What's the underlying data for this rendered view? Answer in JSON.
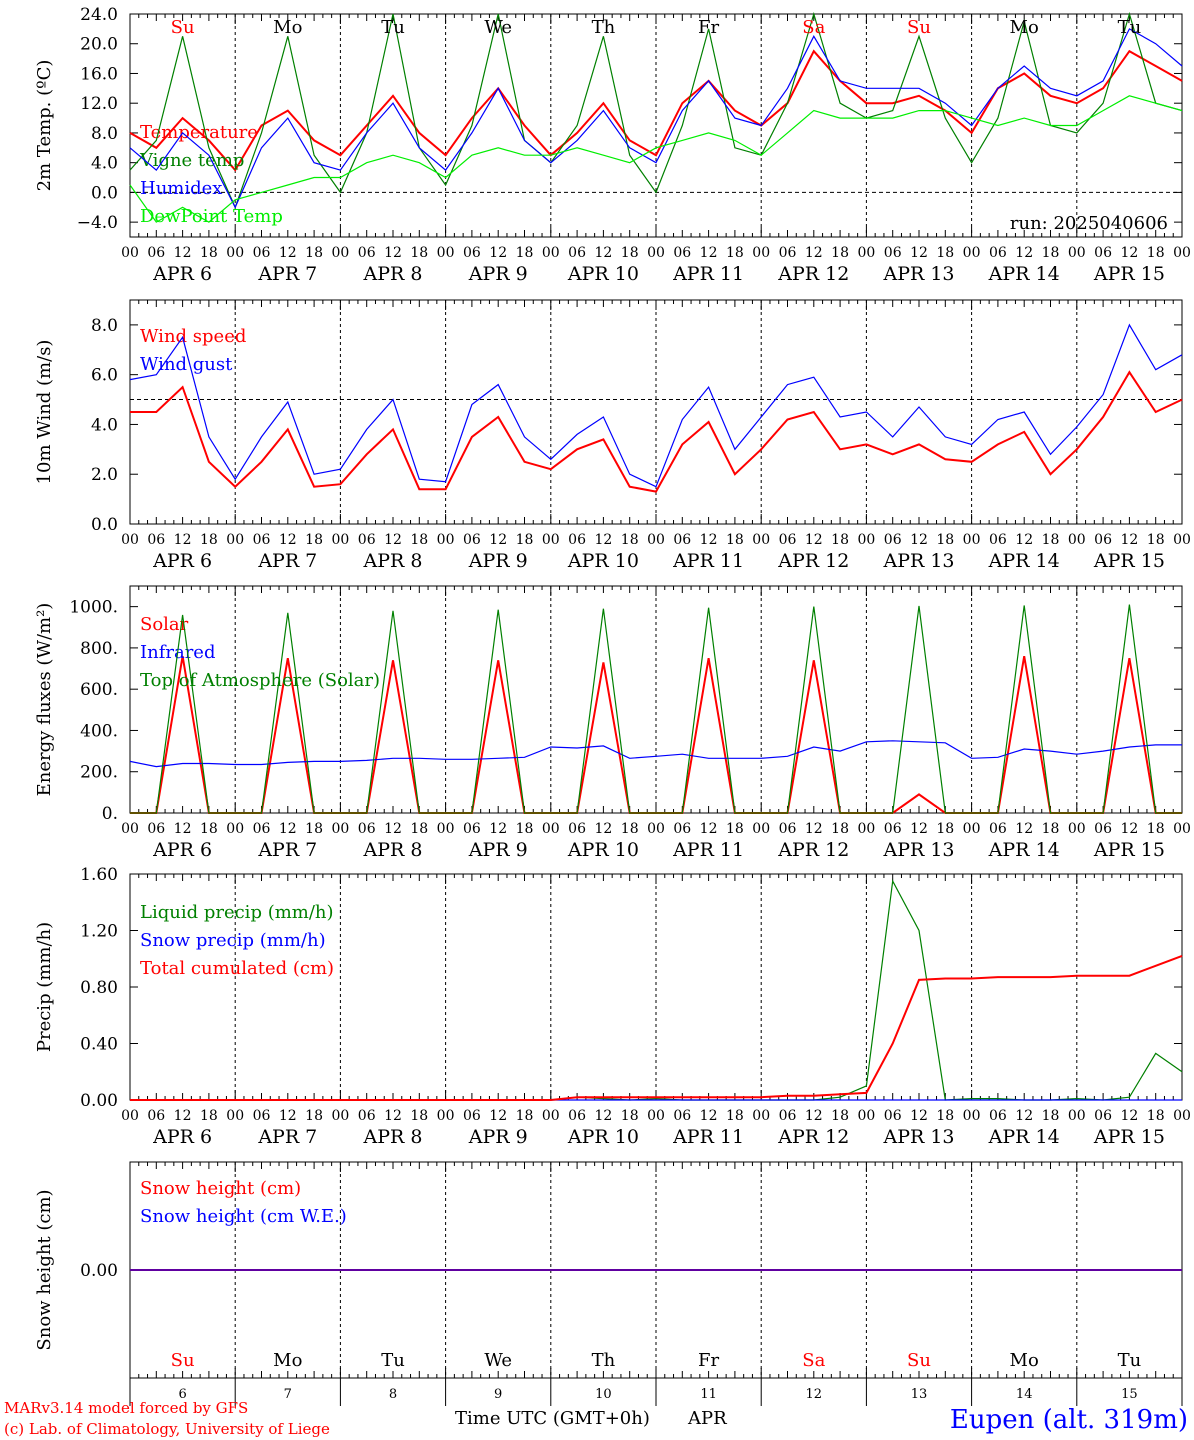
{
  "days": [
    {
      "dow": "Su",
      "date": "APR 6",
      "num": "6",
      "weekend": true
    },
    {
      "dow": "Mo",
      "date": "APR 7",
      "num": "7",
      "weekend": false
    },
    {
      "dow": "Tu",
      "date": "APR 8",
      "num": "8",
      "weekend": false
    },
    {
      "dow": "We",
      "date": "APR 9",
      "num": "9",
      "weekend": false
    },
    {
      "dow": "Th",
      "date": "APR 10",
      "num": "10",
      "weekend": false
    },
    {
      "dow": "Fr",
      "date": "APR 11",
      "num": "11",
      "weekend": false
    },
    {
      "dow": "Sa",
      "date": "APR 12",
      "num": "12",
      "weekend": true
    },
    {
      "dow": "Su",
      "date": "APR 13",
      "num": "13",
      "weekend": true
    },
    {
      "dow": "Mo",
      "date": "APR 14",
      "num": "14",
      "weekend": false
    },
    {
      "dow": "Tu",
      "date": "APR 15",
      "num": "15",
      "weekend": false
    }
  ],
  "hour_labels": [
    "00",
    "06",
    "12",
    "18"
  ],
  "last_hour_label": "00",
  "colors": {
    "red": "#ff0000",
    "darkgreen": "#008000",
    "blue": "#0000ff",
    "lightgreen": "#00ee00",
    "weekend": "#ff0000",
    "text": "#000000"
  },
  "run_label": "run: 2025040606",
  "footer": {
    "credit1": "MARv3.14 model forced by GFS",
    "credit2": "(c) Lab. of Climatology, University of Liege",
    "axis_title": "Time UTC (GMT+0h)",
    "month": "APR",
    "station": "Eupen (alt. 319m)"
  },
  "chart_data": [
    {
      "type": "line",
      "ylabel": "2m Temp. (ºC)",
      "ylim": [
        -6,
        24
      ],
      "yticks": [
        "24.0",
        "20.0",
        "16.0",
        "12.0",
        "8.0",
        "4.0",
        "0.0",
        "−4.0"
      ],
      "ytick_values": [
        24,
        20,
        16,
        12,
        8,
        4,
        0,
        -4
      ],
      "ref_line": 0,
      "x_hours": [
        0,
        6,
        12,
        18,
        24,
        30,
        36,
        42,
        48,
        54,
        60,
        66,
        72,
        78,
        84,
        90,
        96,
        102,
        108,
        114,
        120,
        126,
        132,
        138,
        144,
        150,
        156,
        162,
        168,
        174,
        180,
        186,
        192,
        198,
        204,
        210,
        216,
        222,
        228,
        234,
        240
      ],
      "series": [
        {
          "name": "Temperature",
          "color": "red",
          "values": [
            8,
            6,
            10,
            7,
            3,
            9,
            11,
            7,
            5,
            9,
            13,
            8,
            5,
            10,
            14,
            9,
            5,
            8,
            12,
            7,
            5,
            12,
            15,
            11,
            9,
            12,
            19,
            15,
            12,
            12,
            13,
            11,
            8,
            14,
            16,
            13,
            12,
            14,
            19,
            17,
            15
          ]
        },
        {
          "name": "Vigne temp",
          "color": "darkgreen",
          "values": [
            3,
            7,
            21,
            6,
            -2,
            8,
            21,
            5,
            0,
            8,
            24,
            6,
            1,
            9,
            24,
            7,
            4,
            9,
            21,
            5,
            0,
            9,
            22,
            6,
            5,
            12,
            27,
            12,
            10,
            11,
            21,
            10,
            4,
            10,
            23,
            9,
            8,
            12,
            26,
            12,
            11
          ]
        },
        {
          "name": "Humidex",
          "color": "blue",
          "values": [
            6,
            3,
            8,
            5,
            -2,
            6,
            10,
            4,
            3,
            8,
            12,
            6,
            3,
            8,
            14,
            7,
            4,
            7,
            11,
            6,
            4,
            11,
            15,
            10,
            9,
            14,
            21,
            15,
            14,
            14,
            14,
            12,
            9,
            14,
            17,
            14,
            13,
            15,
            22,
            20,
            17
          ]
        },
        {
          "name": "DewPoint Temp",
          "color": "lightgreen",
          "values": [
            1,
            -4,
            -2,
            -4,
            -1,
            0,
            1,
            2,
            2,
            4,
            5,
            4,
            2,
            5,
            6,
            5,
            5,
            6,
            5,
            4,
            6,
            7,
            8,
            7,
            5,
            8,
            11,
            10,
            10,
            10,
            11,
            11,
            10,
            9,
            10,
            9,
            9,
            11,
            13,
            12,
            11
          ]
        }
      ],
      "annotation": "run: 2025040606"
    },
    {
      "type": "line",
      "ylabel": "10m Wind (m/s)",
      "ylim": [
        0,
        9
      ],
      "yticks": [
        "8.0",
        "6.0",
        "4.0",
        "2.0",
        "0.0"
      ],
      "ytick_values": [
        8,
        6,
        4,
        2,
        0
      ],
      "ref_line": 5,
      "x_hours": [
        0,
        6,
        12,
        18,
        24,
        30,
        36,
        42,
        48,
        54,
        60,
        66,
        72,
        78,
        84,
        90,
        96,
        102,
        108,
        114,
        120,
        126,
        132,
        138,
        144,
        150,
        156,
        162,
        168,
        174,
        180,
        186,
        192,
        198,
        204,
        210,
        216,
        222,
        228,
        234,
        240
      ],
      "series": [
        {
          "name": "Wind speed",
          "color": "red",
          "values": [
            4.5,
            4.5,
            5.5,
            2.5,
            1.5,
            2.5,
            3.8,
            1.5,
            1.6,
            2.8,
            3.8,
            1.4,
            1.4,
            3.5,
            4.3,
            2.5,
            2.2,
            3.0,
            3.4,
            1.5,
            1.3,
            3.2,
            4.1,
            2.0,
            3.0,
            4.2,
            4.5,
            3.0,
            3.2,
            2.8,
            3.2,
            2.6,
            2.5,
            3.2,
            3.7,
            2.0,
            3.0,
            4.3,
            6.1,
            4.5,
            5.0
          ]
        },
        {
          "name": "Wind gust",
          "color": "blue",
          "values": [
            5.8,
            6.0,
            7.5,
            3.5,
            1.8,
            3.5,
            4.9,
            2.0,
            2.2,
            3.8,
            5.0,
            1.8,
            1.7,
            4.8,
            5.6,
            3.5,
            2.6,
            3.6,
            4.3,
            2.0,
            1.5,
            4.2,
            5.5,
            3.0,
            4.3,
            5.6,
            5.9,
            4.3,
            4.5,
            3.5,
            4.7,
            3.5,
            3.2,
            4.2,
            4.5,
            2.8,
            3.9,
            5.2,
            8.0,
            6.2,
            6.8
          ]
        }
      ]
    },
    {
      "type": "line",
      "ylabel": "Energy fluxes (W/m²)",
      "ylim": [
        0,
        1100
      ],
      "yticks": [
        "1000.",
        "800.",
        "600.",
        "400.",
        "200.",
        "0."
      ],
      "ytick_values": [
        1000,
        800,
        600,
        400,
        200,
        0
      ],
      "x_hours": [
        0,
        6,
        12,
        18,
        24,
        30,
        36,
        42,
        48,
        54,
        60,
        66,
        72,
        78,
        84,
        90,
        96,
        102,
        108,
        114,
        120,
        126,
        132,
        138,
        144,
        150,
        156,
        162,
        168,
        174,
        180,
        186,
        192,
        198,
        204,
        210,
        216,
        222,
        228,
        234,
        240
      ],
      "series": [
        {
          "name": "Solar",
          "color": "red",
          "values": [
            0,
            0,
            760,
            0,
            0,
            0,
            750,
            0,
            0,
            0,
            740,
            0,
            0,
            0,
            740,
            0,
            0,
            0,
            730,
            0,
            0,
            0,
            750,
            0,
            0,
            0,
            740,
            0,
            0,
            0,
            90,
            0,
            0,
            0,
            760,
            0,
            0,
            0,
            750,
            0,
            0
          ]
        },
        {
          "name": "Infrared",
          "color": "blue",
          "values": [
            250,
            225,
            240,
            240,
            235,
            235,
            245,
            250,
            250,
            255,
            265,
            265,
            260,
            260,
            265,
            270,
            320,
            315,
            325,
            265,
            275,
            285,
            265,
            265,
            265,
            275,
            320,
            300,
            345,
            350,
            345,
            340,
            265,
            270,
            310,
            300,
            285,
            300,
            320,
            330,
            330
          ]
        },
        {
          "name": "Top of Atmosphere (Solar)",
          "color": "darkgreen",
          "values": [
            0,
            0,
            960,
            0,
            0,
            0,
            970,
            0,
            0,
            0,
            980,
            0,
            0,
            0,
            985,
            0,
            0,
            0,
            990,
            0,
            0,
            0,
            995,
            0,
            0,
            0,
            1000,
            0,
            0,
            0,
            1003,
            0,
            0,
            0,
            1006,
            0,
            0,
            0,
            1010,
            0,
            0
          ]
        }
      ]
    },
    {
      "type": "line",
      "ylabel": "Precip (mm/h)",
      "ylim": [
        0,
        1.6
      ],
      "yticks": [
        "1.60",
        "1.20",
        "0.80",
        "0.40",
        "0.00"
      ],
      "ytick_values": [
        1.6,
        1.2,
        0.8,
        0.4,
        0
      ],
      "x_hours": [
        0,
        6,
        12,
        18,
        24,
        30,
        36,
        42,
        48,
        54,
        60,
        66,
        72,
        78,
        84,
        90,
        96,
        102,
        108,
        114,
        120,
        126,
        132,
        138,
        144,
        150,
        156,
        162,
        168,
        174,
        180,
        186,
        192,
        198,
        204,
        210,
        216,
        222,
        228,
        234,
        240
      ],
      "series": [
        {
          "name": "Liquid precip (mm/h)",
          "color": "darkgreen",
          "values": [
            0,
            0,
            0,
            0,
            0,
            0,
            0,
            0,
            0,
            0,
            0,
            0,
            0,
            0,
            0,
            0,
            0,
            0.02,
            0.01,
            0,
            0.01,
            0,
            0,
            0,
            0,
            0,
            0,
            0.02,
            0.1,
            1.55,
            1.2,
            0,
            0.01,
            0.01,
            0,
            0,
            0.01,
            0,
            0.02,
            0.33,
            0.2
          ]
        },
        {
          "name": "Snow precip (mm/h)",
          "color": "blue",
          "values": [
            0,
            0,
            0,
            0,
            0,
            0,
            0,
            0,
            0,
            0,
            0,
            0,
            0,
            0,
            0,
            0,
            0,
            0,
            0,
            0,
            0,
            0,
            0,
            0,
            0,
            0,
            0,
            0,
            0,
            0,
            0,
            0,
            0,
            0,
            0,
            0,
            0,
            0,
            0,
            0,
            0
          ]
        },
        {
          "name": "Total cumulated (cm)",
          "color": "red",
          "values": [
            0,
            0,
            0,
            0,
            0,
            0,
            0,
            0,
            0,
            0,
            0,
            0,
            0,
            0,
            0,
            0,
            0,
            0.02,
            0.02,
            0.02,
            0.02,
            0.02,
            0.02,
            0.02,
            0.02,
            0.03,
            0.03,
            0.04,
            0.05,
            0.4,
            0.85,
            0.86,
            0.86,
            0.87,
            0.87,
            0.87,
            0.88,
            0.88,
            0.88,
            0.95,
            1.02
          ]
        }
      ]
    },
    {
      "type": "line",
      "ylabel": "Snow height (cm)",
      "ylim": [
        -1,
        1
      ],
      "yticks": [
        "0.00"
      ],
      "ytick_values": [
        0
      ],
      "x_hours": [
        0,
        240
      ],
      "series": [
        {
          "name": "Snow height (cm)",
          "color": "red",
          "values": [
            0,
            0
          ]
        },
        {
          "name": "Snow height (cm W.E.)",
          "color": "blue",
          "values": [
            0,
            0
          ]
        }
      ]
    }
  ]
}
